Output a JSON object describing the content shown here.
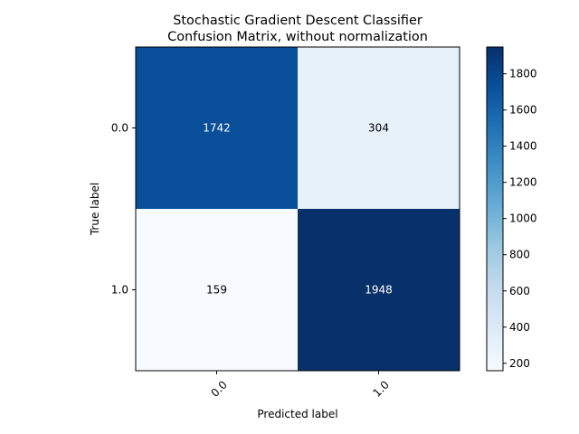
{
  "chart_data": {
    "type": "heatmap",
    "title": "Stochastic Gradient Descent Classifier\nConfusion Matrix, without normalization",
    "title_lines": [
      "Stochastic Gradient Descent Classifier",
      "Confusion Matrix, without normalization"
    ],
    "xlabel": "Predicted label",
    "ylabel": "True label",
    "x_categories": [
      "0.0",
      "1.0"
    ],
    "y_categories": [
      "0.0",
      "1.0"
    ],
    "values": [
      [
        1742,
        304
      ],
      [
        159,
        1948
      ]
    ],
    "cell_labels": [
      [
        "1742",
        "304"
      ],
      [
        "159",
        "1948"
      ]
    ],
    "colormap": "Blues",
    "colormap_light": "#f7fbff",
    "colormap_dark": "#08306b",
    "colorbar": {
      "range": [
        159,
        1948
      ],
      "ticks": [
        200,
        400,
        600,
        800,
        1000,
        1200,
        1400,
        1600,
        1800
      ],
      "tick_labels": [
        "200",
        "400",
        "600",
        "800",
        "1000",
        "1200",
        "1400",
        "1600",
        "1800"
      ]
    },
    "x_tick_rotation": "45 degrees",
    "grid": false
  }
}
